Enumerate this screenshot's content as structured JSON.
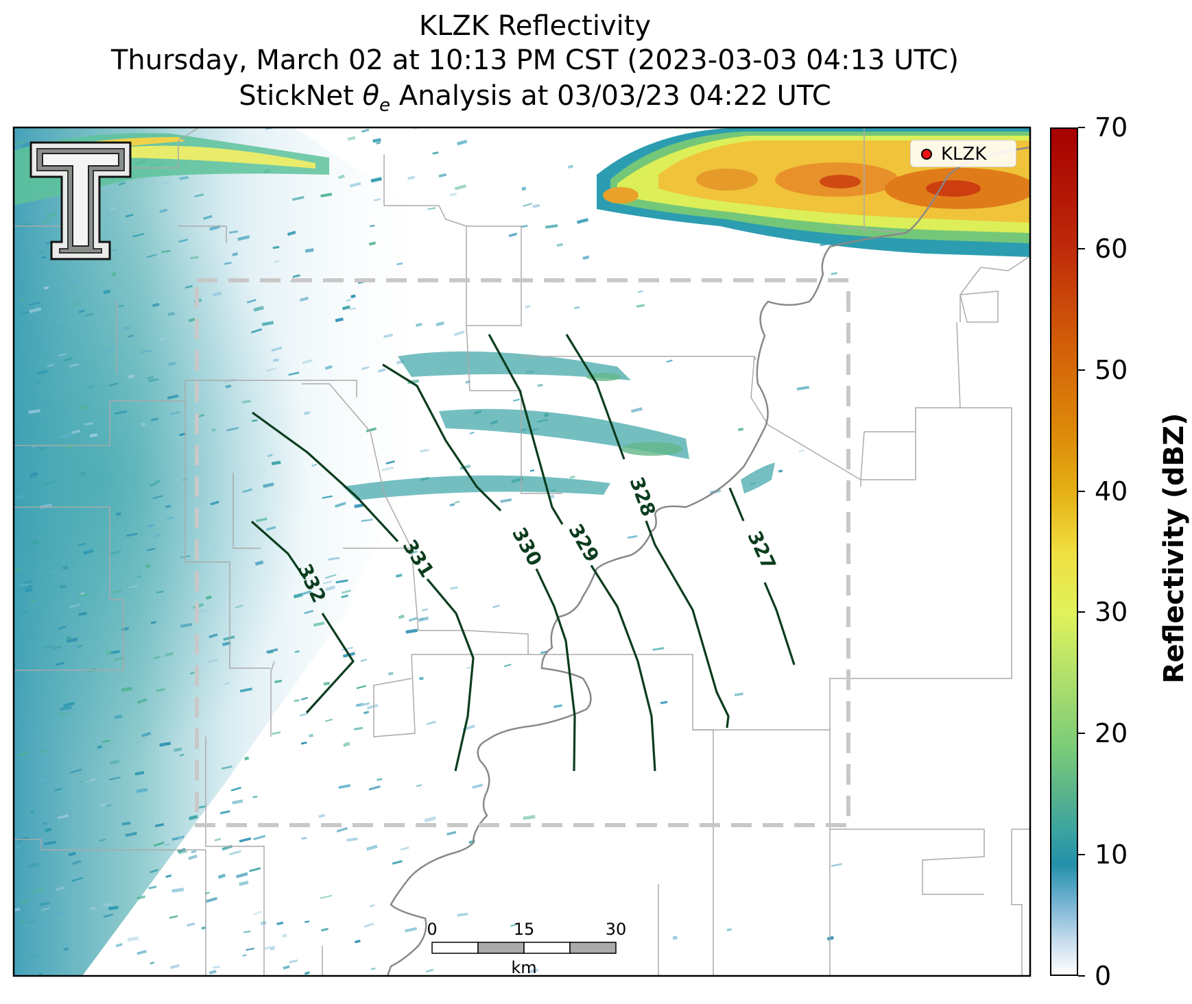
{
  "title": {
    "line1": "KLZK Reflectivity",
    "line2": "Thursday, March 02 at 10:13 PM CST (2023-03-03 04:13 UTC)",
    "line3_prefix": "StickNet ",
    "line3_symbol": "θ",
    "line3_subscript": "e",
    "line3_suffix": " Analysis at 03/03/23 04:22 UTC"
  },
  "legend": {
    "label": "KLZK",
    "marker_color": "#ee1111"
  },
  "colorbar": {
    "label": "Reflectivity (dBZ)",
    "ticks": [
      "0",
      "10",
      "20",
      "30",
      "40",
      "50",
      "60",
      "70"
    ],
    "range": [
      0,
      70
    ]
  },
  "contours": {
    "labels": [
      "332",
      "331",
      "330",
      "329",
      "328",
      "327"
    ],
    "color": "#0b3d1e"
  },
  "scale_bar": {
    "ticks": [
      "0",
      "15",
      "30"
    ],
    "unit": "km"
  },
  "logo": {
    "letter": "T"
  },
  "colors": {
    "analysis_box": "#c8c8c8",
    "river": "#888888",
    "boundary": "#aaaaaa"
  }
}
